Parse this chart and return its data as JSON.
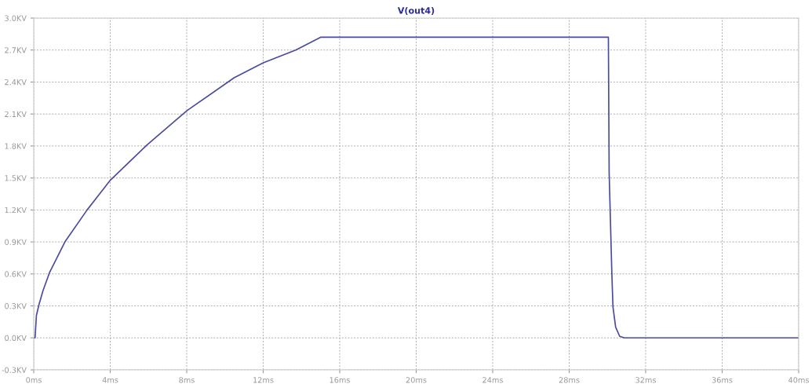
{
  "chart_data": {
    "type": "line",
    "title": "V(out4)",
    "x": [
      0,
      0.07,
      0.14,
      0.27,
      0.48,
      0.82,
      1.63,
      2.79,
      4.01,
      5.92,
      8.0,
      10.48,
      12.0,
      13.7,
      15.0,
      30.05,
      30.09,
      30.16,
      30.23,
      30.29,
      30.43,
      30.64,
      30.89,
      40
    ],
    "series": [
      {
        "color": "#4a4aa0",
        "values": [
          0,
          0,
          0.21,
          0.31,
          0.44,
          0.61,
          0.9,
          1.2,
          1.48,
          1.81,
          2.13,
          2.44,
          2.58,
          2.7,
          2.82,
          2.82,
          1.55,
          1.08,
          0.61,
          0.29,
          0.1,
          0.015,
          0,
          0
        ]
      }
    ],
    "xlim": [
      0,
      40
    ],
    "xticks": [
      {
        "value": 0,
        "label": "0ms"
      },
      {
        "value": 4,
        "label": "4ms"
      },
      {
        "value": 8,
        "label": "8ms"
      },
      {
        "value": 12,
        "label": "12ms"
      },
      {
        "value": 16,
        "label": "16ms"
      },
      {
        "value": 20,
        "label": "20ms"
      },
      {
        "value": 24,
        "label": "24ms"
      },
      {
        "value": 28,
        "label": "28ms"
      },
      {
        "value": 32,
        "label": "32ms"
      },
      {
        "value": 36,
        "label": "36ms"
      },
      {
        "value": 40,
        "label": "40ms"
      }
    ],
    "ylim": [
      -0.3,
      3.0
    ],
    "yticks": [
      {
        "value": -0.3,
        "label": "-0.3KV"
      },
      {
        "value": 0,
        "label": "0.0KV"
      },
      {
        "value": 0.3,
        "label": "0.3KV"
      },
      {
        "value": 0.6,
        "label": "0.6KV"
      },
      {
        "value": 0.9,
        "label": "0.9KV"
      },
      {
        "value": 1.2,
        "label": "1.2KV"
      },
      {
        "value": 1.5,
        "label": "1.5KV"
      },
      {
        "value": 1.8,
        "label": "1.8KV"
      },
      {
        "value": 2.1,
        "label": "2.1KV"
      },
      {
        "value": 2.4,
        "label": "2.4KV"
      },
      {
        "value": 2.7,
        "label": "2.7KV"
      },
      {
        "value": 3.0,
        "label": "3.0KV"
      }
    ],
    "grid": true,
    "line_style": "solid",
    "marker": "none"
  }
}
